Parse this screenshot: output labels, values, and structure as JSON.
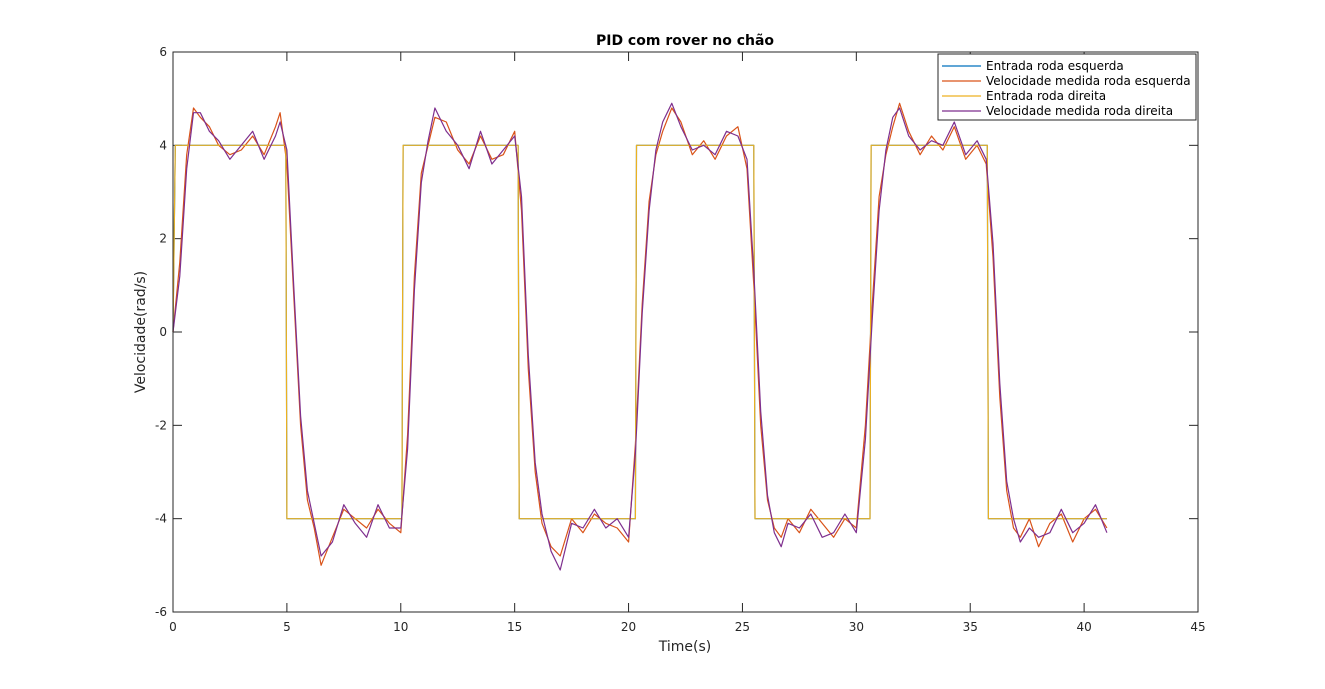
{
  "chart_data": {
    "type": "line",
    "title": "PID com rover no chão",
    "xlabel": "Time(s)",
    "ylabel": "Velocidade(rad/s)",
    "xlim": [
      0,
      45
    ],
    "ylim": [
      -6,
      6
    ],
    "xticks": [
      0,
      5,
      10,
      15,
      20,
      25,
      30,
      35,
      40,
      45
    ],
    "yticks": [
      -6,
      -4,
      -2,
      0,
      2,
      4,
      6
    ],
    "grid": false,
    "legend_position": "top-right",
    "series": [
      {
        "name": "Entrada roda esquerda",
        "color": "#0072BD",
        "x": [
          0,
          0.1,
          4.95,
          5.0,
          10.05,
          10.1,
          15.15,
          15.2,
          20.3,
          20.35,
          25.5,
          25.55,
          30.6,
          30.65,
          35.75,
          35.8,
          41.0
        ],
        "y": [
          0,
          4,
          4,
          -4,
          -4,
          4,
          4,
          -4,
          -4,
          4,
          4,
          -4,
          -4,
          4,
          4,
          -4,
          -4
        ]
      },
      {
        "name": "Velocidade medida roda esquerda",
        "color": "#D95319",
        "x": [
          0,
          0.3,
          0.6,
          0.9,
          1.2,
          1.6,
          2.0,
          2.5,
          3.0,
          3.5,
          4.0,
          4.5,
          4.7,
          5.0,
          5.3,
          5.6,
          5.9,
          6.2,
          6.5,
          7.0,
          7.5,
          8.0,
          8.5,
          9.0,
          9.5,
          10.0,
          10.3,
          10.6,
          10.9,
          11.2,
          11.5,
          12.0,
          12.5,
          13.0,
          13.5,
          14.0,
          14.5,
          15.0,
          15.3,
          15.6,
          15.9,
          16.2,
          16.6,
          17.0,
          17.5,
          18.0,
          18.5,
          19.0,
          19.5,
          20.0,
          20.3,
          20.6,
          20.9,
          21.2,
          21.5,
          21.9,
          22.3,
          22.8,
          23.3,
          23.8,
          24.3,
          24.8,
          25.2,
          25.5,
          25.8,
          26.1,
          26.4,
          26.7,
          27.0,
          27.5,
          28.0,
          28.5,
          29.0,
          29.5,
          30.0,
          30.4,
          30.7,
          31.0,
          31.3,
          31.6,
          31.9,
          32.3,
          32.8,
          33.3,
          33.8,
          34.3,
          34.8,
          35.3,
          35.7,
          36.0,
          36.3,
          36.6,
          36.9,
          37.2,
          37.6,
          38.0,
          38.5,
          39.0,
          39.5,
          40.0,
          40.5,
          41.0
        ],
        "y": [
          0,
          1.5,
          3.8,
          4.8,
          4.6,
          4.4,
          4.0,
          3.8,
          3.9,
          4.2,
          3.8,
          4.4,
          4.7,
          3.6,
          0.8,
          -2.0,
          -3.6,
          -4.2,
          -5.0,
          -4.4,
          -3.8,
          -4.0,
          -4.2,
          -3.8,
          -4.1,
          -4.3,
          -2.2,
          1.2,
          3.4,
          4.0,
          4.6,
          4.5,
          3.9,
          3.6,
          4.2,
          3.7,
          3.8,
          4.3,
          2.6,
          -0.8,
          -3.0,
          -4.1,
          -4.6,
          -4.8,
          -4.0,
          -4.3,
          -3.9,
          -4.1,
          -4.2,
          -4.5,
          -2.4,
          0.6,
          2.8,
          3.8,
          4.3,
          4.8,
          4.5,
          3.8,
          4.1,
          3.7,
          4.2,
          4.4,
          3.5,
          1.0,
          -2.0,
          -3.6,
          -4.2,
          -4.4,
          -4.0,
          -4.3,
          -3.8,
          -4.1,
          -4.4,
          -4.0,
          -4.2,
          -2.0,
          0.6,
          2.9,
          3.8,
          4.4,
          4.9,
          4.3,
          3.8,
          4.2,
          3.9,
          4.4,
          3.7,
          4.0,
          3.6,
          1.6,
          -1.4,
          -3.4,
          -4.2,
          -4.4,
          -4.0,
          -4.6,
          -4.1,
          -3.9,
          -4.5,
          -4.0,
          -3.8,
          -4.2
        ]
      },
      {
        "name": "Entrada roda direita",
        "color": "#EDB120",
        "x": [
          0,
          0.1,
          4.95,
          5.0,
          10.05,
          10.1,
          15.15,
          15.2,
          20.3,
          20.35,
          25.5,
          25.55,
          30.6,
          30.65,
          35.75,
          35.8,
          41.0
        ],
        "y": [
          0,
          4,
          4,
          -4,
          -4,
          4,
          4,
          -4,
          -4,
          4,
          4,
          -4,
          -4,
          4,
          4,
          -4,
          -4
        ]
      },
      {
        "name": "Velocidade medida roda direita",
        "color": "#7E2F8E",
        "x": [
          0,
          0.3,
          0.6,
          0.9,
          1.2,
          1.6,
          2.0,
          2.5,
          3.0,
          3.5,
          4.0,
          4.5,
          4.7,
          5.0,
          5.3,
          5.6,
          5.9,
          6.2,
          6.5,
          7.0,
          7.5,
          8.0,
          8.5,
          9.0,
          9.5,
          10.0,
          10.3,
          10.6,
          10.9,
          11.2,
          11.5,
          12.0,
          12.5,
          13.0,
          13.5,
          14.0,
          14.5,
          15.0,
          15.3,
          15.6,
          15.9,
          16.2,
          16.6,
          17.0,
          17.5,
          18.0,
          18.5,
          19.0,
          19.5,
          20.0,
          20.3,
          20.6,
          20.9,
          21.2,
          21.5,
          21.9,
          22.3,
          22.8,
          23.3,
          23.8,
          24.3,
          24.8,
          25.2,
          25.5,
          25.8,
          26.1,
          26.4,
          26.7,
          27.0,
          27.5,
          28.0,
          28.5,
          29.0,
          29.5,
          30.0,
          30.4,
          30.7,
          31.0,
          31.3,
          31.6,
          31.9,
          32.3,
          32.8,
          33.3,
          33.8,
          34.3,
          34.8,
          35.3,
          35.7,
          36.0,
          36.3,
          36.6,
          36.9,
          37.2,
          37.6,
          38.0,
          38.5,
          39.0,
          39.5,
          40.0,
          40.5,
          41.0
        ],
        "y": [
          0,
          1.2,
          3.5,
          4.7,
          4.7,
          4.3,
          4.1,
          3.7,
          4.0,
          4.3,
          3.7,
          4.2,
          4.5,
          3.9,
          1.0,
          -1.8,
          -3.4,
          -4.1,
          -4.8,
          -4.5,
          -3.7,
          -4.1,
          -4.4,
          -3.7,
          -4.2,
          -4.2,
          -2.5,
          0.9,
          3.2,
          4.1,
          4.8,
          4.3,
          4.0,
          3.5,
          4.3,
          3.6,
          3.9,
          4.2,
          2.9,
          -0.5,
          -2.8,
          -3.9,
          -4.7,
          -5.1,
          -4.1,
          -4.2,
          -3.8,
          -4.2,
          -4.0,
          -4.4,
          -2.6,
          0.4,
          2.6,
          3.9,
          4.5,
          4.9,
          4.4,
          3.9,
          4.0,
          3.8,
          4.3,
          4.2,
          3.7,
          1.3,
          -1.7,
          -3.5,
          -4.3,
          -4.6,
          -4.1,
          -4.2,
          -3.9,
          -4.4,
          -4.3,
          -3.9,
          -4.3,
          -2.3,
          0.3,
          2.6,
          3.9,
          4.6,
          4.8,
          4.2,
          3.9,
          4.1,
          4.0,
          4.5,
          3.8,
          4.1,
          3.7,
          1.9,
          -1.1,
          -3.2,
          -4.0,
          -4.5,
          -4.2,
          -4.4,
          -4.3,
          -3.8,
          -4.3,
          -4.1,
          -3.7,
          -4.3
        ]
      }
    ]
  }
}
